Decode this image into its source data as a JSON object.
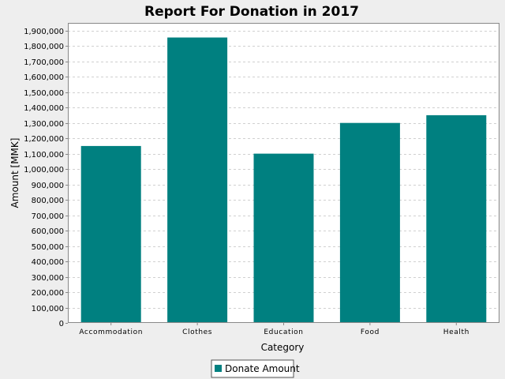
{
  "chart_data": {
    "type": "bar",
    "title": "Report For Donation in 2017",
    "xlabel": "Category",
    "ylabel": "Amount [MMK]",
    "categories": [
      "Accommodation",
      "Clothes",
      "Education",
      "Food",
      "Health"
    ],
    "series": [
      {
        "name": "Donate Amount",
        "color": "#008080",
        "values": [
          1150000,
          1855000,
          1100000,
          1300000,
          1350000
        ]
      }
    ],
    "ylim": [
      0,
      1950000
    ],
    "yticks": [
      0,
      100000,
      200000,
      300000,
      400000,
      500000,
      600000,
      700000,
      800000,
      900000,
      1000000,
      1100000,
      1200000,
      1300000,
      1400000,
      1500000,
      1600000,
      1700000,
      1800000,
      1900000
    ],
    "ytick_labels": [
      "0",
      "100,000",
      "200,000",
      "300,000",
      "400,000",
      "500,000",
      "600,000",
      "700,000",
      "800,000",
      "900,000",
      "1,000,000",
      "1,100,000",
      "1,200,000",
      "1,300,000",
      "1,400,000",
      "1,500,000",
      "1,600,000",
      "1,700,000",
      "1,800,000",
      "1,900,000"
    ],
    "grid": true,
    "legend_position": "bottom-center"
  },
  "colors": {
    "background": "#eeeeee",
    "plot_background": "#ffffff",
    "gridline": "#d0d0d0",
    "axis": "#888888",
    "bar": "#008080"
  }
}
